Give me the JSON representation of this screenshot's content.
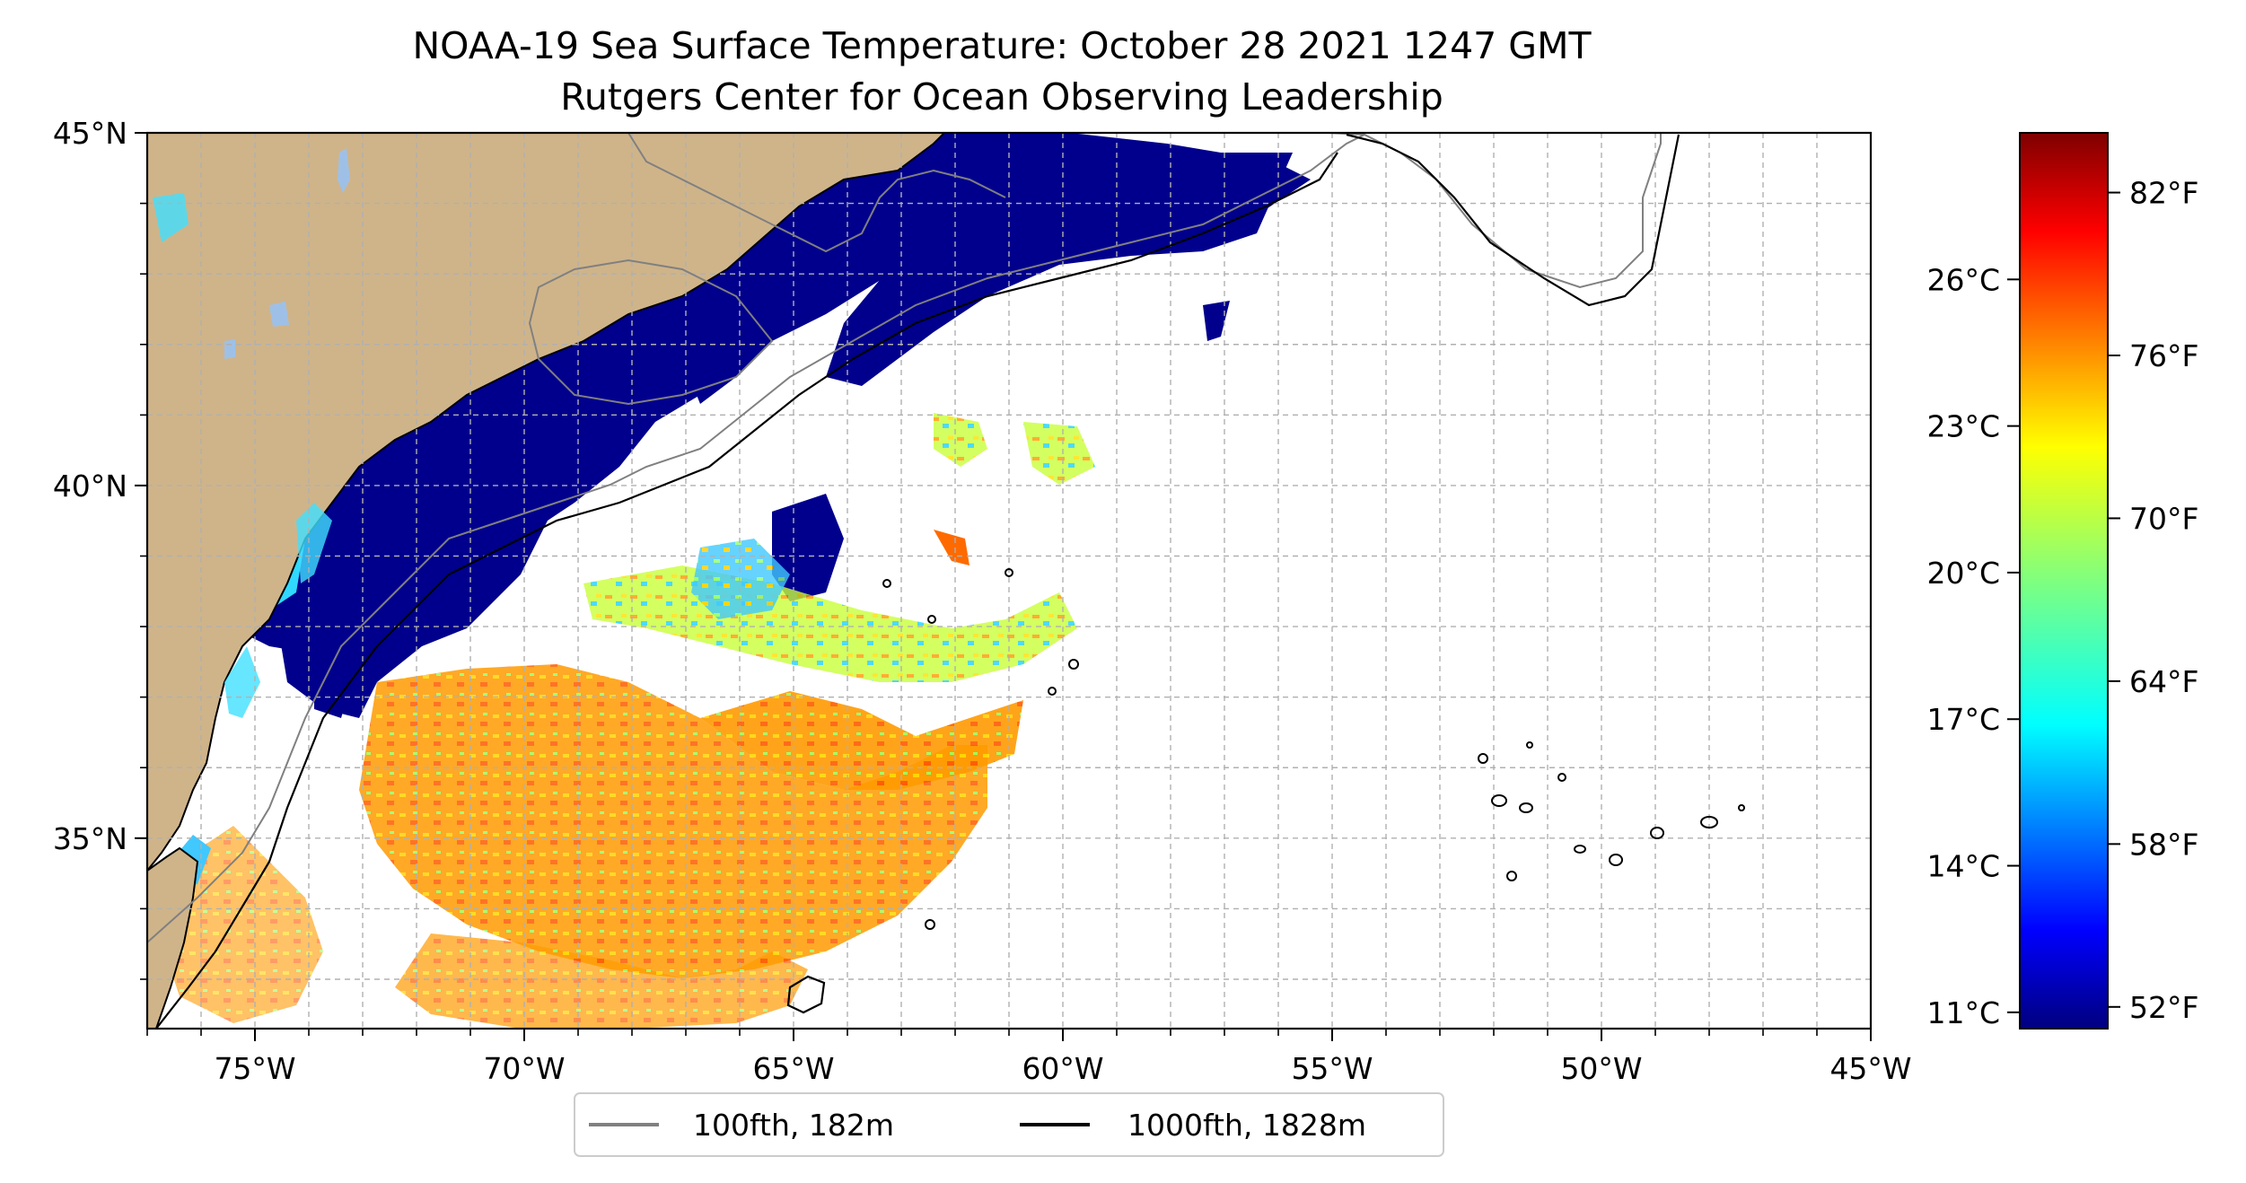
{
  "title": "NOAA-19 Sea Surface Temperature: October 28 2021 1247 GMT",
  "subtitle": "Rutgers Center for Ocean Observing Leadership",
  "map": {
    "lon_range": [
      -77,
      -45
    ],
    "lat_range": [
      32.3,
      45
    ],
    "lon_ticks": [
      {
        "value": -75,
        "label": "75°W"
      },
      {
        "value": -70,
        "label": "70°W"
      },
      {
        "value": -65,
        "label": "65°W"
      },
      {
        "value": -60,
        "label": "60°W"
      },
      {
        "value": -55,
        "label": "55°W"
      },
      {
        "value": -50,
        "label": "50°W"
      },
      {
        "value": -45,
        "label": "45°W"
      }
    ],
    "lat_ticks": [
      {
        "value": 45,
        "label": "45°N"
      },
      {
        "value": 40,
        "label": "40°N"
      },
      {
        "value": 35,
        "label": "35°N"
      }
    ],
    "gridlines": "dashed",
    "colors": {
      "land": "#cfb48a",
      "lakes": "#9fc0e6",
      "ocean": "#ffffff",
      "contour_100": "#808080",
      "contour_1000": "#000000"
    }
  },
  "colorbar": {
    "colormap": "jet",
    "celsius_ticks": [
      {
        "value": 26,
        "label": "26°C"
      },
      {
        "value": 23,
        "label": "23°C"
      },
      {
        "value": 20,
        "label": "20°C"
      },
      {
        "value": 17,
        "label": "17°C"
      },
      {
        "value": 14,
        "label": "14°C"
      },
      {
        "value": 11,
        "label": "11°C"
      }
    ],
    "fahrenheit_ticks": [
      {
        "value": 82,
        "label": "82°F"
      },
      {
        "value": 76,
        "label": "76°F"
      },
      {
        "value": 70,
        "label": "70°F"
      },
      {
        "value": 64,
        "label": "64°F"
      },
      {
        "value": 58,
        "label": "58°F"
      },
      {
        "value": 52,
        "label": "52°F"
      }
    ],
    "range_f": [
      51.2,
      84.2
    ]
  },
  "legend": {
    "items": [
      {
        "label": "100fth, 182m",
        "color": "#808080"
      },
      {
        "label": "1000fth, 1828m",
        "color": "#000000"
      }
    ]
  }
}
